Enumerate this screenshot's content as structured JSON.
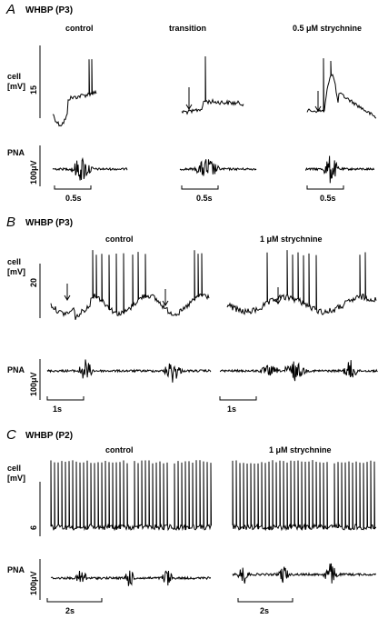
{
  "panelA": {
    "letter": "A",
    "title": "WHBP (P3)",
    "conditions": [
      "control",
      "transition",
      "0.5 μM strychnine"
    ],
    "cell_label_1": "cell",
    "cell_label_2": "[mV]",
    "cell_scale": "15",
    "pna_label": "PNA",
    "pna_scale": "100μV",
    "time_scales": [
      "0.5s",
      "0.5s",
      "0.5s"
    ]
  },
  "panelB": {
    "letter": "B",
    "title": "WHBP (P3)",
    "conditions": [
      "control",
      "1 μM strychnine"
    ],
    "cell_label_1": "cell",
    "cell_label_2": "[mV]",
    "cell_scale": "20",
    "pna_label": "PNA",
    "pna_scale": "100μV",
    "time_scales": [
      "1s",
      "1s"
    ]
  },
  "panelC": {
    "letter": "C",
    "title": "WHBP (P2)",
    "conditions": [
      "control",
      "1 μM strychnine"
    ],
    "cell_label_1": "cell",
    "cell_label_2": "[mV]",
    "cell_scale": "6",
    "pna_label": "PNA",
    "pna_scale": "100μV",
    "time_scales": [
      "2s",
      "2s"
    ]
  }
}
